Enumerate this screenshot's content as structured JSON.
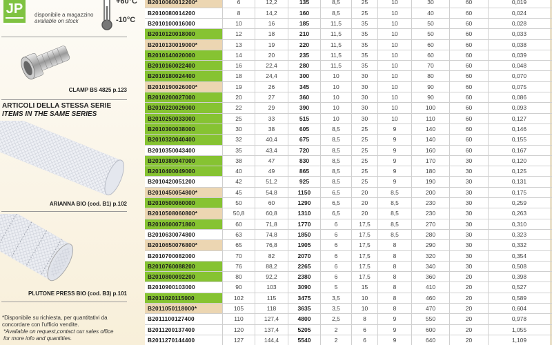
{
  "left": {
    "logo": "JP",
    "availability_it": "disponibile a magazzino",
    "availability_en": "available on stock",
    "temp_max": "+60°C",
    "temp_min": "-10°C",
    "clamp_caption": "CLAMP BS 4825 p.123",
    "series_title_it": "ARTICOLI DELLA STESSA SERIE",
    "series_title_en": "ITEMS IN THE SAME SERIES",
    "item1_caption": "ARIANNA BIO (cod. B1) p.102",
    "item2_caption": "PLUTONE PRESS BIO (cod. B3) p.101",
    "footnote_it": "*Disponibile su richiesta, per quantitativi da concordare con l'ufficio vendite.",
    "footnote_en": "*Available on request,contact our sales office for more info and quantities."
  },
  "colors": {
    "stock_green": "#86c332",
    "on_request_tan": "#ecd6b2"
  },
  "rows": [
    {
      "s": "tan",
      "v": [
        "B2010060012200*",
        "6",
        "12,2",
        "135",
        "8,5",
        "25",
        "10",
        "30",
        "60",
        "0,019"
      ]
    },
    {
      "s": "white",
      "v": [
        "B2010080014200",
        "8",
        "14,2",
        "160",
        "8,5",
        "25",
        "10",
        "40",
        "60",
        "0,024"
      ]
    },
    {
      "s": "white",
      "v": [
        "B2010100016000",
        "10",
        "16",
        "185",
        "11,5",
        "35",
        "10",
        "50",
        "60",
        "0,028"
      ]
    },
    {
      "s": "green",
      "v": [
        "B2010120018000",
        "12",
        "18",
        "210",
        "11,5",
        "35",
        "10",
        "50",
        "60",
        "0,033"
      ]
    },
    {
      "s": "tan",
      "v": [
        "B2010130019000*",
        "13",
        "19",
        "220",
        "11,5",
        "35",
        "10",
        "60",
        "60",
        "0,038"
      ]
    },
    {
      "s": "green",
      "v": [
        "B2010140020000",
        "14",
        "20",
        "235",
        "11,5",
        "35",
        "10",
        "60",
        "60",
        "0,039"
      ]
    },
    {
      "s": "green",
      "v": [
        "B2010160022400",
        "16",
        "22,4",
        "280",
        "11,5",
        "35",
        "10",
        "70",
        "60",
        "0,048"
      ]
    },
    {
      "s": "green",
      "v": [
        "B2010180024400",
        "18",
        "24,4",
        "300",
        "10",
        "30",
        "10",
        "80",
        "60",
        "0,070"
      ]
    },
    {
      "s": "tan",
      "v": [
        "B2010190026000*",
        "19",
        "26",
        "345",
        "10",
        "30",
        "10",
        "90",
        "60",
        "0,075"
      ]
    },
    {
      "s": "green",
      "v": [
        "B2010200027000",
        "20",
        "27",
        "360",
        "10",
        "30",
        "10",
        "90",
        "60",
        "0,086"
      ]
    },
    {
      "s": "green",
      "v": [
        "B2010220029000",
        "22",
        "29",
        "390",
        "10",
        "30",
        "10",
        "100",
        "60",
        "0,093"
      ]
    },
    {
      "s": "green",
      "v": [
        "B2010250033000",
        "25",
        "33",
        "515",
        "10",
        "30",
        "10",
        "110",
        "60",
        "0,127"
      ]
    },
    {
      "s": "green",
      "v": [
        "B2010300038000",
        "30",
        "38",
        "605",
        "8,5",
        "25",
        "9",
        "140",
        "60",
        "0,146"
      ]
    },
    {
      "s": "green",
      "v": [
        "B2010320040400",
        "32",
        "40,4",
        "675",
        "8,5",
        "25",
        "9",
        "140",
        "60",
        "0,155"
      ]
    },
    {
      "s": "white",
      "v": [
        "B2010350043400",
        "35",
        "43,4",
        "720",
        "8,5",
        "25",
        "9",
        "160",
        "60",
        "0,167"
      ]
    },
    {
      "s": "green",
      "v": [
        "B2010380047000",
        "38",
        "47",
        "830",
        "8,5",
        "25",
        "9",
        "170",
        "30",
        "0,120"
      ]
    },
    {
      "s": "green",
      "v": [
        "B2010400049000",
        "40",
        "49",
        "865",
        "8,5",
        "25",
        "9",
        "180",
        "30",
        "0,125"
      ]
    },
    {
      "s": "white",
      "v": [
        "B2010420051200",
        "42",
        "51,2",
        "925",
        "8,5",
        "25",
        "9",
        "190",
        "30",
        "0,131"
      ]
    },
    {
      "s": "tan",
      "v": [
        "B2010450054800*",
        "45",
        "54,8",
        "1150",
        "6,5",
        "20",
        "8,5",
        "200",
        "30",
        "0,175"
      ]
    },
    {
      "s": "green",
      "v": [
        "B2010500060000",
        "50",
        "60",
        "1290",
        "6,5",
        "20",
        "8,5",
        "230",
        "30",
        "0,259"
      ]
    },
    {
      "s": "tan",
      "v": [
        "B2010508060800*",
        "50,8",
        "60,8",
        "1310",
        "6,5",
        "20",
        "8,5",
        "230",
        "30",
        "0,263"
      ]
    },
    {
      "s": "green",
      "v": [
        "B2010600071800",
        "60",
        "71,8",
        "1770",
        "6",
        "17,5",
        "8,5",
        "270",
        "30",
        "0,310"
      ]
    },
    {
      "s": "white",
      "v": [
        "B2010630074800",
        "63",
        "74,8",
        "1850",
        "6",
        "17,5",
        "8,5",
        "280",
        "30",
        "0,323"
      ]
    },
    {
      "s": "tan",
      "v": [
        "B2010650076800*",
        "65",
        "76,8",
        "1905",
        "6",
        "17,5",
        "8",
        "290",
        "30",
        "0,332"
      ]
    },
    {
      "s": "white",
      "v": [
        "B2010700082000",
        "70",
        "82",
        "2070",
        "6",
        "17,5",
        "8",
        "320",
        "30",
        "0,354"
      ]
    },
    {
      "s": "green",
      "v": [
        "B2010760088200",
        "76",
        "88,2",
        "2265",
        "6",
        "17,5",
        "8",
        "340",
        "30",
        "0,508"
      ]
    },
    {
      "s": "green",
      "v": [
        "B2010800092200",
        "80",
        "92,2",
        "2380",
        "6",
        "17,5",
        "8",
        "360",
        "20",
        "0,398"
      ]
    },
    {
      "s": "white",
      "v": [
        "B2010900103000",
        "90",
        "103",
        "3090",
        "5",
        "15",
        "8",
        "410",
        "20",
        "0,527"
      ]
    },
    {
      "s": "green",
      "v": [
        "B2011020115000",
        "102",
        "115",
        "3475",
        "3,5",
        "10",
        "8",
        "460",
        "20",
        "0,589"
      ]
    },
    {
      "s": "tan",
      "v": [
        "B2011050118000*",
        "105",
        "118",
        "3635",
        "3,5",
        "10",
        "8",
        "470",
        "20",
        "0,604"
      ]
    },
    {
      "s": "white",
      "v": [
        "B2011100127400",
        "110",
        "127,4",
        "4800",
        "2,5",
        "8",
        "9",
        "550",
        "20",
        "0,978"
      ]
    },
    {
      "s": "white",
      "v": [
        "B2011200137400",
        "120",
        "137,4",
        "5205",
        "2",
        "6",
        "9",
        "600",
        "20",
        "1,055"
      ]
    },
    {
      "s": "white",
      "v": [
        "B2011270144400",
        "127",
        "144,4",
        "5540",
        "2",
        "6",
        "9",
        "640",
        "20",
        "1,109"
      ]
    }
  ]
}
